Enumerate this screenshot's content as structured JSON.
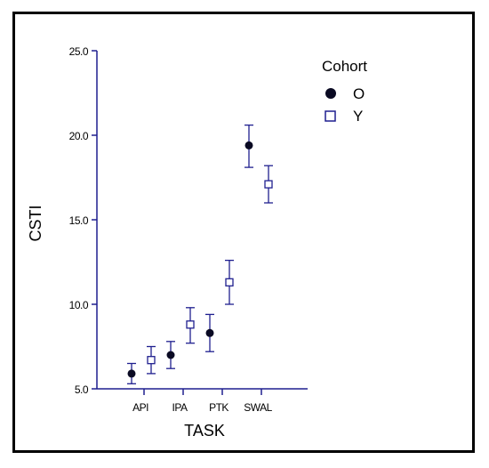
{
  "chart_data": {
    "type": "scatter",
    "title": "",
    "xlabel": "TASK",
    "ylabel": "CSTI",
    "categories": [
      "API",
      "IPA",
      "PTK",
      "SWAL"
    ],
    "ylim": [
      5.0,
      25.0
    ],
    "yticks": [
      "5.0",
      "10.0",
      "15.0",
      "20.0",
      "25.0"
    ],
    "grid": false,
    "legend": {
      "title": "Cohort",
      "position": "top-right"
    },
    "series": [
      {
        "name": "O",
        "marker": "filled-circle",
        "color": "#0a0a23",
        "values": [
          5.9,
          7.0,
          8.3,
          19.4
        ],
        "error_low": [
          5.3,
          6.2,
          7.2,
          18.1
        ],
        "error_high": [
          6.5,
          7.8,
          9.4,
          20.6
        ]
      },
      {
        "name": "Y",
        "marker": "open-square",
        "color": "#1f1f8f",
        "values": [
          6.7,
          8.8,
          11.3,
          17.1
        ],
        "error_low": [
          5.9,
          7.7,
          10.0,
          16.0
        ],
        "error_high": [
          7.5,
          9.8,
          12.6,
          18.2
        ]
      }
    ]
  }
}
